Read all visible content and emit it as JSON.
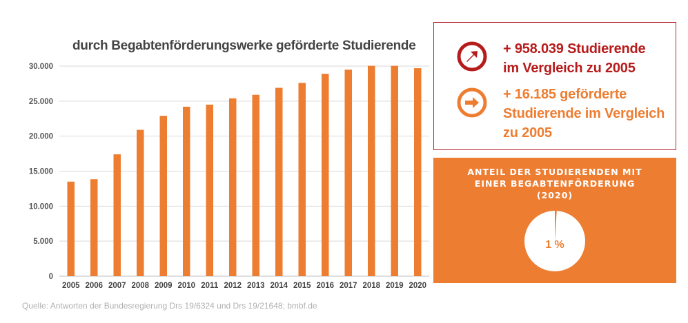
{
  "chart_data": {
    "type": "bar",
    "title": "durch  Begabtenförderungswerke geförderte Studierende",
    "categories": [
      "2005",
      "2006",
      "2007",
      "2008",
      "2009",
      "2010",
      "2011",
      "2012",
      "2013",
      "2014",
      "2015",
      "2016",
      "2017",
      "2018",
      "2019",
      "2020"
    ],
    "values": [
      13500,
      13850,
      17400,
      20900,
      22900,
      24200,
      24500,
      25400,
      25900,
      26900,
      27600,
      28900,
      29500,
      30050,
      30050,
      29700
    ],
    "ylim": [
      0,
      30000
    ],
    "yticks": [
      0,
      5000,
      10000,
      15000,
      20000,
      25000,
      30000
    ],
    "ytick_labels": [
      "0",
      "5.000",
      "10.000",
      "15.000",
      "20.000",
      "25.000",
      "30.000"
    ],
    "xlabel": "",
    "ylabel": "",
    "grid": true,
    "bar_color": "#ed7d31"
  },
  "source": "Quelle: Antworten der Bundesregierung Drs 19/6324 und Drs 19/21648; bmbf.de",
  "stats": [
    {
      "line1": "+ 958.039 Studierende",
      "line2": "im Vergleich zu 2005",
      "line3": "",
      "color": "#b71c1c",
      "icon": "arrow-up-right-circle-icon"
    },
    {
      "line1": "+ 16.185 geförderte",
      "line2": "Studierende im Vergleich",
      "line3": "zu 2005",
      "color": "#ed7d31",
      "icon": "arrow-right-circle-icon"
    }
  ],
  "share": {
    "title_line1": "ANTEIL DER STUDIERENDEN MIT",
    "title_line2": "EINER BEGABTENFÖRDERUNG",
    "title_line3": "(2020)",
    "percent_label": "1 %",
    "percent_value": 1,
    "box_color": "#ed7d31",
    "pie_color": "#ffffff",
    "slice_color": "#ed7d31"
  }
}
